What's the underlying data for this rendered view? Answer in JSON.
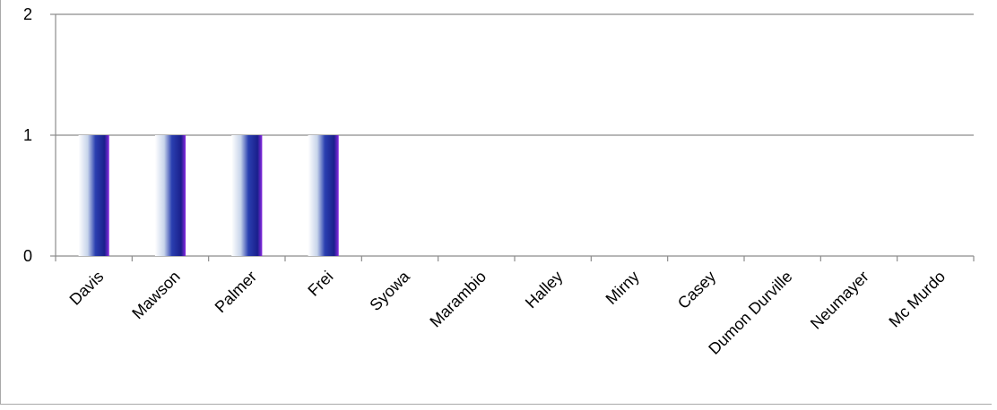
{
  "chart_data": {
    "type": "bar",
    "title": "",
    "xlabel": "",
    "ylabel": "",
    "categories": [
      "Davis",
      "Mawson",
      "Palmer",
      "Frei",
      "Syowa",
      "Marambio",
      "Halley",
      "Mirny",
      "Casey",
      "Dumon Durville",
      "Neumayer",
      "Mc Murdo"
    ],
    "values": [
      1,
      1,
      1,
      1,
      0,
      0,
      0,
      0,
      0,
      0,
      0,
      0
    ],
    "ylim": [
      0,
      2
    ],
    "yticks": [
      0,
      1,
      2
    ],
    "grid": true,
    "legend": "none",
    "colors": {
      "bar_light": "#c7d4ea",
      "bar_mid": "#2a3fb0",
      "bar_dark": "#1a1f8c",
      "bar_edge": "#8a2be2",
      "gridline": "#8c8c8c",
      "axis": "#8c8c8c"
    }
  }
}
